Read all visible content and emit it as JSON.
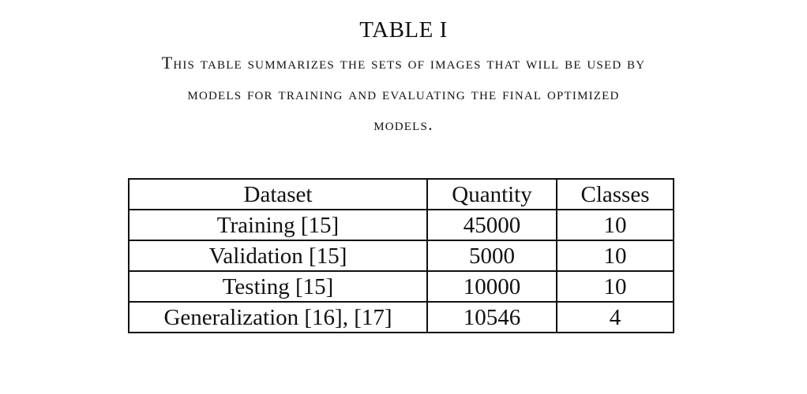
{
  "caption": {
    "label": "TABLE I",
    "lines": [
      "This table summarizes the sets of images that will be used by",
      "models for training and evaluating the final optimized",
      "models."
    ]
  },
  "table": {
    "headers": [
      "Dataset",
      "Quantity",
      "Classes"
    ],
    "rows": [
      [
        "Training [15]",
        "45000",
        "10"
      ],
      [
        "Validation [15]",
        "5000",
        "10"
      ],
      [
        "Testing [15]",
        "10000",
        "10"
      ],
      [
        "Generalization [16], [17]",
        "10546",
        "4"
      ]
    ]
  }
}
